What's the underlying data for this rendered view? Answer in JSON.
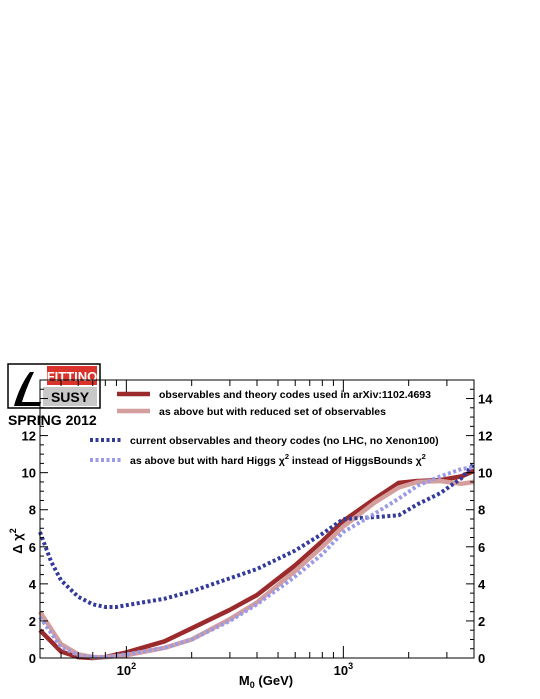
{
  "logo": {
    "brand_top": "FITTINO",
    "brand_bottom": "SUSY",
    "subtitle": "SPRING 2012"
  },
  "chart_data": {
    "type": "line",
    "title": "",
    "xlabel": "M0 (GeV)",
    "xlabel_main": "M",
    "xlabel_sub": "0",
    "xlabel_unit": " (GeV)",
    "ylabel": "Δ χ2",
    "ylabel_main": "Δ χ",
    "ylabel_sup": "2",
    "xscale": "log",
    "xlim": [
      40,
      4000
    ],
    "ylim": [
      0,
      15
    ],
    "x_ticks": [
      {
        "value": 100,
        "base": "10",
        "exp": "2"
      },
      {
        "value": 1000,
        "base": "10",
        "exp": "3"
      }
    ],
    "y_ticks_left": [
      0,
      2,
      4,
      6,
      8,
      10,
      12
    ],
    "y_ticks_right": [
      0,
      2,
      4,
      6,
      8,
      10,
      12,
      14
    ],
    "grid": false,
    "legend_position": "top",
    "series": [
      {
        "name": "observables and theory codes used in arXiv:1102.4693",
        "color": "#9b2a2c",
        "style": "solid",
        "width": 4.5,
        "x": [
          40,
          50,
          60,
          70,
          80,
          100,
          150,
          200,
          300,
          400,
          600,
          800,
          1000,
          1400,
          1800,
          2200,
          2800,
          3500,
          4000
        ],
        "y": [
          1.5,
          0.35,
          0.05,
          0.0,
          0.05,
          0.3,
          0.9,
          1.6,
          2.6,
          3.4,
          5.0,
          6.3,
          7.4,
          8.6,
          9.45,
          9.55,
          9.6,
          9.8,
          10.1
        ]
      },
      {
        "name": "as above but with reduced set of observables",
        "color": "#d49e9c",
        "style": "solid",
        "width": 4.5,
        "x": [
          40,
          50,
          60,
          70,
          80,
          100,
          150,
          200,
          300,
          400,
          600,
          800,
          1000,
          1400,
          1800,
          2200,
          2800,
          3500,
          4000
        ],
        "y": [
          2.5,
          0.75,
          0.2,
          0.05,
          0.05,
          0.15,
          0.55,
          1.0,
          2.1,
          3.0,
          4.7,
          6.0,
          7.1,
          8.4,
          9.2,
          9.5,
          9.55,
          9.4,
          9.5
        ]
      },
      {
        "name": "current observables and theory codes (no LHC, no Xenon100)",
        "color": "#343a9a",
        "style": "dotted",
        "width": 4,
        "x": [
          40,
          45,
          50,
          60,
          70,
          80,
          90,
          100,
          150,
          200,
          300,
          400,
          600,
          800,
          1000,
          1400,
          1800,
          2200,
          2800,
          3500,
          4000
        ],
        "y": [
          6.8,
          5.2,
          4.2,
          3.3,
          2.9,
          2.75,
          2.75,
          2.85,
          3.2,
          3.6,
          4.3,
          4.8,
          5.8,
          6.7,
          7.5,
          7.6,
          7.7,
          8.3,
          8.9,
          9.7,
          10.5
        ]
      },
      {
        "name": "as above but with hard Higgs χ2 instead of HiggsBounds χ2",
        "name_parts": [
          "as above but with hard Higgs χ",
          "2",
          " instead of HiggsBounds χ",
          "2"
        ],
        "color": "#9a9ae6",
        "style": "dotted",
        "width": 4,
        "x": [
          40,
          50,
          60,
          70,
          80,
          100,
          150,
          200,
          300,
          400,
          600,
          800,
          1000,
          1400,
          1800,
          2200,
          2800,
          3500,
          4000
        ],
        "y": [
          2.2,
          0.6,
          0.15,
          0.05,
          0.05,
          0.2,
          0.55,
          1.0,
          2.0,
          2.9,
          4.4,
          5.6,
          6.8,
          7.8,
          8.6,
          9.3,
          9.8,
          10.2,
          10.3
        ]
      }
    ]
  }
}
